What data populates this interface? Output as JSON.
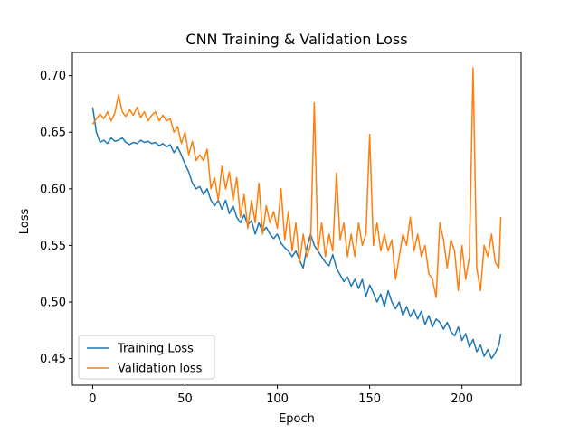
{
  "chart_data": {
    "type": "line",
    "title": "CNN Training & Validation Loss",
    "xlabel": "Epoch",
    "ylabel": "Loss",
    "xlim": [
      -11,
      232
    ],
    "ylim": [
      0.4265,
      0.7205
    ],
    "xticks": [
      0,
      50,
      100,
      150,
      200
    ],
    "yticks": [
      0.45,
      0.5,
      0.55,
      0.6,
      0.65,
      0.7
    ],
    "ytick_labels": [
      "0.45",
      "0.50",
      "0.55",
      "0.60",
      "0.65",
      "0.70"
    ],
    "legend_position": "lower-left",
    "grid": false,
    "series": [
      {
        "name": "Training Loss",
        "color": "#1f77b4",
        "points": [
          [
            0,
            0.672
          ],
          [
            2,
            0.65
          ],
          [
            4,
            0.641
          ],
          [
            6,
            0.643
          ],
          [
            8,
            0.64
          ],
          [
            10,
            0.645
          ],
          [
            12,
            0.642
          ],
          [
            14,
            0.643
          ],
          [
            16,
            0.645
          ],
          [
            18,
            0.641
          ],
          [
            20,
            0.639
          ],
          [
            22,
            0.641
          ],
          [
            24,
            0.64
          ],
          [
            26,
            0.643
          ],
          [
            28,
            0.641
          ],
          [
            30,
            0.642
          ],
          [
            32,
            0.64
          ],
          [
            34,
            0.641
          ],
          [
            36,
            0.638
          ],
          [
            38,
            0.64
          ],
          [
            40,
            0.637
          ],
          [
            42,
            0.639
          ],
          [
            44,
            0.632
          ],
          [
            46,
            0.637
          ],
          [
            48,
            0.63
          ],
          [
            50,
            0.622
          ],
          [
            52,
            0.615
          ],
          [
            54,
            0.605
          ],
          [
            56,
            0.6
          ],
          [
            58,
            0.602
          ],
          [
            60,
            0.595
          ],
          [
            62,
            0.6
          ],
          [
            64,
            0.59
          ],
          [
            66,
            0.585
          ],
          [
            68,
            0.59
          ],
          [
            70,
            0.582
          ],
          [
            72,
            0.59
          ],
          [
            74,
            0.578
          ],
          [
            76,
            0.585
          ],
          [
            78,
            0.575
          ],
          [
            80,
            0.57
          ],
          [
            82,
            0.577
          ],
          [
            84,
            0.568
          ],
          [
            86,
            0.572
          ],
          [
            88,
            0.56
          ],
          [
            90,
            0.57
          ],
          [
            92,
            0.562
          ],
          [
            94,
            0.566
          ],
          [
            96,
            0.56
          ],
          [
            98,
            0.556
          ],
          [
            100,
            0.56
          ],
          [
            102,
            0.552
          ],
          [
            104,
            0.548
          ],
          [
            106,
            0.545
          ],
          [
            108,
            0.54
          ],
          [
            110,
            0.545
          ],
          [
            112,
            0.537
          ],
          [
            114,
            0.53
          ],
          [
            116,
            0.548
          ],
          [
            118,
            0.56
          ],
          [
            120,
            0.55
          ],
          [
            122,
            0.545
          ],
          [
            124,
            0.54
          ],
          [
            126,
            0.535
          ],
          [
            128,
            0.532
          ],
          [
            130,
            0.542
          ],
          [
            132,
            0.53
          ],
          [
            134,
            0.524
          ],
          [
            136,
            0.518
          ],
          [
            138,
            0.522
          ],
          [
            140,
            0.514
          ],
          [
            142,
            0.52
          ],
          [
            144,
            0.512
          ],
          [
            146,
            0.52
          ],
          [
            148,
            0.505
          ],
          [
            150,
            0.515
          ],
          [
            152,
            0.508
          ],
          [
            154,
            0.5
          ],
          [
            156,
            0.507
          ],
          [
            158,
            0.496
          ],
          [
            160,
            0.51
          ],
          [
            162,
            0.5
          ],
          [
            164,
            0.494
          ],
          [
            166,
            0.5
          ],
          [
            168,
            0.488
          ],
          [
            170,
            0.496
          ],
          [
            172,
            0.487
          ],
          [
            174,
            0.493
          ],
          [
            176,
            0.485
          ],
          [
            178,
            0.492
          ],
          [
            180,
            0.48
          ],
          [
            182,
            0.488
          ],
          [
            184,
            0.478
          ],
          [
            186,
            0.485
          ],
          [
            188,
            0.482
          ],
          [
            190,
            0.476
          ],
          [
            192,
            0.482
          ],
          [
            194,
            0.474
          ],
          [
            196,
            0.47
          ],
          [
            198,
            0.478
          ],
          [
            200,
            0.466
          ],
          [
            202,
            0.472
          ],
          [
            204,
            0.46
          ],
          [
            206,
            0.467
          ],
          [
            208,
            0.456
          ],
          [
            210,
            0.462
          ],
          [
            212,
            0.452
          ],
          [
            214,
            0.458
          ],
          [
            216,
            0.45
          ],
          [
            218,
            0.455
          ],
          [
            220,
            0.462
          ],
          [
            221,
            0.472
          ]
        ]
      },
      {
        "name": "Validation loss",
        "color": "#ff7f0e",
        "points": [
          [
            0,
            0.657
          ],
          [
            2,
            0.662
          ],
          [
            4,
            0.666
          ],
          [
            6,
            0.662
          ],
          [
            8,
            0.668
          ],
          [
            10,
            0.66
          ],
          [
            12,
            0.667
          ],
          [
            14,
            0.683
          ],
          [
            16,
            0.668
          ],
          [
            18,
            0.664
          ],
          [
            20,
            0.67
          ],
          [
            22,
            0.665
          ],
          [
            24,
            0.672
          ],
          [
            26,
            0.663
          ],
          [
            28,
            0.668
          ],
          [
            30,
            0.66
          ],
          [
            32,
            0.665
          ],
          [
            34,
            0.668
          ],
          [
            36,
            0.66
          ],
          [
            38,
            0.665
          ],
          [
            40,
            0.66
          ],
          [
            42,
            0.662
          ],
          [
            44,
            0.65
          ],
          [
            46,
            0.655
          ],
          [
            48,
            0.64
          ],
          [
            50,
            0.65
          ],
          [
            52,
            0.63
          ],
          [
            54,
            0.642
          ],
          [
            56,
            0.625
          ],
          [
            58,
            0.63
          ],
          [
            60,
            0.625
          ],
          [
            62,
            0.635
          ],
          [
            64,
            0.6
          ],
          [
            66,
            0.61
          ],
          [
            68,
            0.59
          ],
          [
            70,
            0.62
          ],
          [
            72,
            0.6
          ],
          [
            74,
            0.615
          ],
          [
            76,
            0.59
          ],
          [
            78,
            0.61
          ],
          [
            80,
            0.575
          ],
          [
            82,
            0.595
          ],
          [
            84,
            0.565
          ],
          [
            86,
            0.59
          ],
          [
            88,
            0.57
          ],
          [
            90,
            0.605
          ],
          [
            92,
            0.56
          ],
          [
            94,
            0.585
          ],
          [
            96,
            0.57
          ],
          [
            98,
            0.58
          ],
          [
            100,
            0.565
          ],
          [
            102,
            0.6
          ],
          [
            104,
            0.555
          ],
          [
            106,
            0.58
          ],
          [
            108,
            0.545
          ],
          [
            110,
            0.57
          ],
          [
            112,
            0.535
          ],
          [
            114,
            0.56
          ],
          [
            116,
            0.54
          ],
          [
            118,
            0.55
          ],
          [
            120,
            0.676
          ],
          [
            122,
            0.545
          ],
          [
            124,
            0.57
          ],
          [
            126,
            0.54
          ],
          [
            128,
            0.56
          ],
          [
            130,
            0.545
          ],
          [
            132,
            0.614
          ],
          [
            134,
            0.555
          ],
          [
            136,
            0.57
          ],
          [
            138,
            0.54
          ],
          [
            140,
            0.56
          ],
          [
            142,
            0.54
          ],
          [
            144,
            0.57
          ],
          [
            146,
            0.55
          ],
          [
            148,
            0.56
          ],
          [
            150,
            0.648
          ],
          [
            152,
            0.55
          ],
          [
            154,
            0.57
          ],
          [
            156,
            0.545
          ],
          [
            158,
            0.56
          ],
          [
            160,
            0.545
          ],
          [
            162,
            0.555
          ],
          [
            164,
            0.52
          ],
          [
            166,
            0.54
          ],
          [
            168,
            0.56
          ],
          [
            170,
            0.55
          ],
          [
            172,
            0.575
          ],
          [
            174,
            0.545
          ],
          [
            176,
            0.56
          ],
          [
            178,
            0.54
          ],
          [
            180,
            0.55
          ],
          [
            182,
            0.525
          ],
          [
            184,
            0.52
          ],
          [
            186,
            0.504
          ],
          [
            188,
            0.57
          ],
          [
            190,
            0.555
          ],
          [
            192,
            0.53
          ],
          [
            194,
            0.555
          ],
          [
            196,
            0.545
          ],
          [
            198,
            0.51
          ],
          [
            200,
            0.55
          ],
          [
            202,
            0.52
          ],
          [
            204,
            0.54
          ],
          [
            206,
            0.707
          ],
          [
            208,
            0.53
          ],
          [
            210,
            0.51
          ],
          [
            212,
            0.55
          ],
          [
            214,
            0.54
          ],
          [
            216,
            0.56
          ],
          [
            218,
            0.535
          ],
          [
            220,
            0.53
          ],
          [
            221,
            0.575
          ]
        ]
      }
    ]
  }
}
